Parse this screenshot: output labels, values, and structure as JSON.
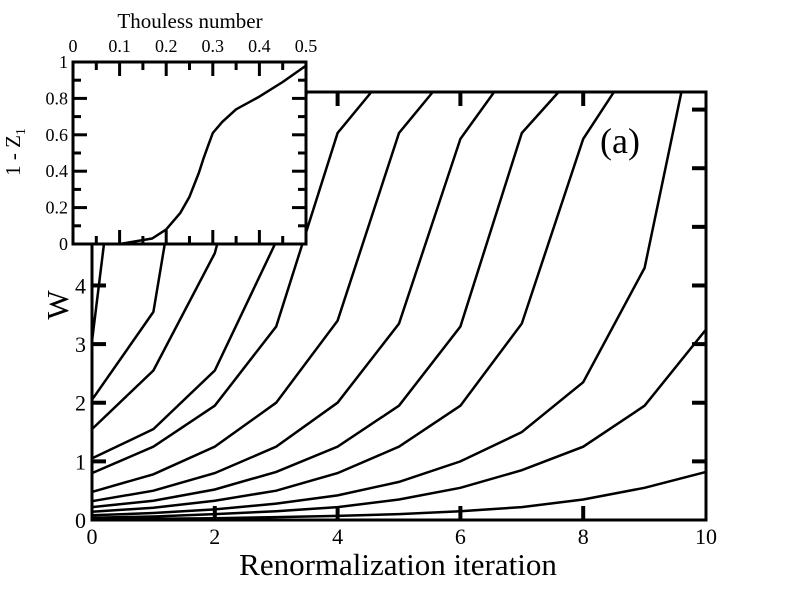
{
  "chart_data": [
    {
      "type": "line",
      "panel_label": "(a)",
      "xlabel": "Renormalization iteration",
      "ylabel": "W",
      "xlim": [
        0,
        10
      ],
      "ylim": [
        0,
        7.3
      ],
      "xticks": [
        0,
        2,
        4,
        6,
        8,
        10
      ],
      "yticks": [
        0,
        1,
        2,
        3,
        4
      ],
      "grid": false,
      "legend": "none",
      "series": [
        {
          "x": [
            0,
            1,
            2,
            3,
            4,
            5,
            6,
            7,
            8,
            9,
            10
          ],
          "values": [
            0.01,
            0.02,
            0.03,
            0.05,
            0.07,
            0.1,
            0.15,
            0.22,
            0.35,
            0.55,
            0.82
          ]
        },
        {
          "x": [
            0,
            1,
            2,
            3,
            4,
            5,
            6,
            7,
            8,
            9,
            10
          ],
          "values": [
            0.04,
            0.06,
            0.1,
            0.15,
            0.22,
            0.35,
            0.55,
            0.85,
            1.25,
            1.95,
            3.25
          ]
        },
        {
          "x": [
            0,
            1,
            2,
            3,
            4,
            5,
            6,
            7,
            8,
            9,
            9.6
          ],
          "values": [
            0.08,
            0.12,
            0.18,
            0.28,
            0.42,
            0.65,
            1.0,
            1.5,
            2.35,
            4.3,
            7.3
          ]
        },
        {
          "x": [
            0,
            1,
            2,
            3,
            4,
            5,
            6,
            7,
            8,
            8.5
          ],
          "values": [
            0.14,
            0.21,
            0.33,
            0.5,
            0.8,
            1.25,
            1.95,
            3.35,
            6.5,
            7.3
          ]
        },
        {
          "x": [
            0,
            1,
            2,
            3,
            4,
            5,
            6,
            7,
            7.6
          ],
          "values": [
            0.22,
            0.33,
            0.52,
            0.82,
            1.25,
            1.95,
            3.3,
            6.6,
            7.3
          ]
        },
        {
          "x": [
            0,
            1,
            2,
            3,
            4,
            5,
            6,
            6.55
          ],
          "values": [
            0.32,
            0.5,
            0.8,
            1.25,
            2.0,
            3.35,
            6.5,
            7.3
          ]
        },
        {
          "x": [
            0,
            1,
            2,
            3,
            4,
            5,
            5.55
          ],
          "values": [
            0.48,
            0.78,
            1.25,
            2.0,
            3.4,
            6.6,
            7.3
          ]
        },
        {
          "x": [
            0,
            1,
            2,
            3,
            4,
            4.55
          ],
          "values": [
            0.8,
            1.25,
            1.95,
            3.3,
            6.6,
            7.3
          ]
        },
        {
          "x": [
            0,
            1,
            2,
            3,
            3.5
          ],
          "values": [
            1.05,
            1.55,
            2.55,
            4.75,
            7.3
          ]
        },
        {
          "x": [
            0,
            1,
            2,
            2.7
          ],
          "values": [
            1.55,
            2.55,
            4.55,
            7.3
          ]
        },
        {
          "x": [
            0,
            1,
            1.6
          ],
          "values": [
            2.05,
            3.55,
            7.3
          ]
        },
        {
          "x": [
            0,
            0.5
          ],
          "values": [
            3.05,
            7.3
          ]
        }
      ]
    },
    {
      "type": "line",
      "inset": true,
      "xlabel": "Thouless number",
      "ylabel": "1 - Z",
      "ylabel_subscript": "1",
      "xlim": [
        0,
        0.5
      ],
      "ylim": [
        0,
        1
      ],
      "xticks": [
        0,
        0.1,
        0.2,
        0.3,
        0.4,
        0.5
      ],
      "xtick_labels": [
        "0",
        "0.1",
        "0.2",
        "0.3",
        "0.4",
        "0.5"
      ],
      "yticks": [
        0,
        0.2,
        0.4,
        0.6,
        0.8,
        1
      ],
      "ytick_labels": [
        "0",
        "0.2",
        "0.4",
        "0.6",
        "0.8",
        "1"
      ],
      "series": [
        {
          "x": [
            0.0,
            0.1,
            0.17,
            0.2,
            0.23,
            0.25,
            0.27,
            0.28,
            0.29,
            0.3,
            0.32,
            0.35,
            0.4,
            0.45,
            0.5
          ],
          "values": [
            0.0,
            0.0,
            0.03,
            0.08,
            0.17,
            0.26,
            0.39,
            0.47,
            0.54,
            0.61,
            0.67,
            0.74,
            0.81,
            0.89,
            0.98
          ]
        }
      ]
    }
  ]
}
